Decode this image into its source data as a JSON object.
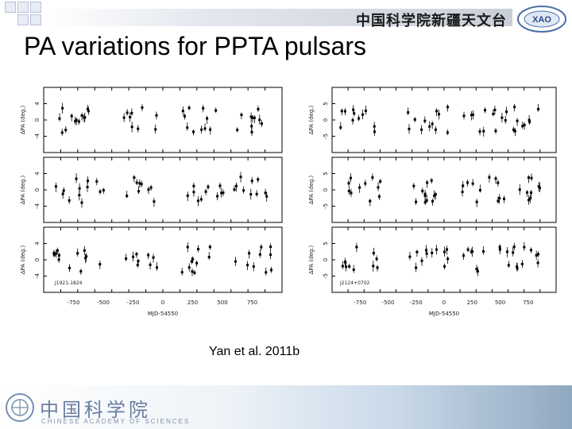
{
  "header": {
    "org_name": "中国科学院新疆天文台",
    "logo_text": "XAO"
  },
  "slide": {
    "title": "PA variations for PPTA pulsars",
    "caption": "Yan et al. 2011b"
  },
  "footer": {
    "cas_name": "中国科学院",
    "cas_english": "CHINESE ACADEMY OF SCIENCES"
  },
  "chart_data": {
    "type": "scatter",
    "panels": [
      {
        "name": "left column",
        "xlabel": "MJD-54550",
        "xticks": [
          "-750",
          "-500",
          "-250",
          "0",
          "250",
          "500",
          "750"
        ],
        "ylabel": "ΔPA (deg.)",
        "yticks": [
          "4",
          "0",
          "-4"
        ],
        "rows": 3,
        "pulsar_label": "J1921-1824"
      },
      {
        "name": "right column",
        "xlabel": "MJD-54550",
        "xticks": [
          "-750",
          "-500",
          "-250",
          "0",
          "250",
          "500",
          "750"
        ],
        "ylabel": "ΔPA (deg.)",
        "yticks": [
          "5",
          "0",
          "-5"
        ],
        "rows": 3,
        "pulsar_label": "J2124+0702"
      }
    ]
  }
}
